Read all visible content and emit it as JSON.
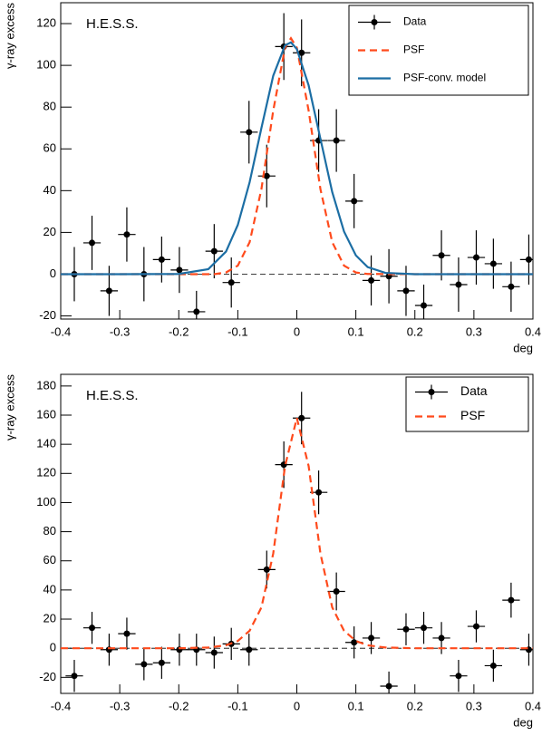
{
  "chart_data": [
    {
      "type": "errorbar",
      "annotation": "H.E.S.S.",
      "y_label": "γ-ray excess",
      "x_label": "deg",
      "xlim": [
        -0.4,
        0.4
      ],
      "xticks": [
        -0.4,
        -0.3,
        -0.2,
        -0.1,
        0,
        0.1,
        0.2,
        0.3,
        0.4
      ],
      "ylim": [
        -21.5,
        130
      ],
      "yticks": [
        -20,
        0,
        20,
        40,
        60,
        80,
        100,
        120
      ],
      "legend": "upper right",
      "zero_line": true,
      "series": [
        {
          "name": "Data",
          "color": "#000000",
          "style": "points",
          "xerr": 0.0148,
          "x": [
            -0.377,
            -0.347,
            -0.318,
            -0.288,
            -0.259,
            -0.229,
            -0.199,
            -0.17,
            -0.14,
            -0.111,
            -0.081,
            -0.051,
            -0.022,
            0.008,
            0.037,
            0.067,
            0.097,
            0.126,
            0.156,
            0.185,
            0.215,
            0.245,
            0.274,
            0.304,
            0.333,
            0.363,
            0.393
          ],
          "values": [
            0,
            15,
            -8,
            19,
            0,
            7,
            2,
            -18,
            11,
            -4,
            68,
            47,
            109,
            106,
            64,
            64,
            35,
            -3,
            -1,
            -8,
            -15,
            9,
            -5,
            8,
            5,
            -6,
            7
          ],
          "errors": [
            13,
            13,
            12,
            13,
            13,
            11,
            11,
            10,
            13,
            12,
            15,
            15,
            16,
            16,
            15,
            15,
            13,
            12,
            13,
            12,
            10,
            12,
            13,
            13,
            12,
            12,
            12
          ]
        },
        {
          "name": "PSF",
          "color": "#ff4a1c",
          "style": "dashed",
          "x": [
            -0.4,
            -0.3,
            -0.2,
            -0.14,
            -0.12,
            -0.1,
            -0.08,
            -0.06,
            -0.04,
            -0.02,
            -0.01,
            0,
            0.02,
            0.04,
            0.06,
            0.08,
            0.1,
            0.12,
            0.2,
            0.3,
            0.4
          ],
          "values": [
            0,
            0,
            0,
            0,
            0.8,
            4.1,
            15.3,
            40.7,
            78.3,
            108.5,
            113,
            108.5,
            78.3,
            40.7,
            15.3,
            4.1,
            0.8,
            0.1,
            0,
            0,
            0
          ]
        },
        {
          "name": "PSF-conv. model",
          "color": "#1c6ea4",
          "style": "solid",
          "x": [
            -0.4,
            -0.3,
            -0.2,
            -0.15,
            -0.12,
            -0.1,
            -0.08,
            -0.06,
            -0.04,
            -0.02,
            -0.01,
            0,
            0.02,
            0.04,
            0.06,
            0.08,
            0.1,
            0.12,
            0.15,
            0.2,
            0.3,
            0.4
          ],
          "values": [
            0,
            0,
            0.1,
            2.4,
            10.8,
            23.6,
            44,
            70,
            95,
            109.6,
            111,
            107.8,
            90.4,
            64.8,
            39.3,
            20.4,
            9,
            3.4,
            0.6,
            0,
            0,
            0
          ]
        }
      ]
    },
    {
      "type": "errorbar",
      "annotation": "H.E.S.S.",
      "y_label": "γ-ray excess",
      "x_label": "deg",
      "xlim": [
        -0.4,
        0.4
      ],
      "xticks": [
        -0.4,
        -0.3,
        -0.2,
        -0.1,
        0,
        0.1,
        0.2,
        0.3,
        0.4
      ],
      "ylim": [
        -31,
        188
      ],
      "yticks": [
        -20,
        0,
        20,
        40,
        60,
        80,
        100,
        120,
        140,
        160,
        180
      ],
      "legend": "upper right",
      "zero_line": true,
      "series": [
        {
          "name": "Data",
          "color": "#000000",
          "style": "points",
          "xerr": 0.0148,
          "x": [
            -0.377,
            -0.347,
            -0.318,
            -0.288,
            -0.259,
            -0.229,
            -0.199,
            -0.17,
            -0.14,
            -0.111,
            -0.081,
            -0.051,
            -0.022,
            0.008,
            0.037,
            0.067,
            0.097,
            0.126,
            0.156,
            0.185,
            0.215,
            0.245,
            0.274,
            0.304,
            0.333,
            0.363,
            0.393
          ],
          "values": [
            -19,
            14,
            -1,
            10,
            -11,
            -10,
            -1,
            -1,
            -3,
            3,
            -1,
            54,
            126,
            158,
            107,
            39,
            4,
            7,
            -26,
            13,
            14,
            7,
            -19,
            15,
            -12,
            33,
            -1
          ],
          "errors": [
            11,
            11,
            11,
            11,
            11,
            11,
            11,
            11,
            11,
            11,
            11,
            13,
            16,
            18,
            15,
            13,
            11,
            11,
            10,
            11,
            11,
            11,
            11,
            11,
            11,
            12,
            11
          ]
        },
        {
          "name": "PSF",
          "color": "#ff4a1c",
          "style": "dashed",
          "x": [
            -0.4,
            -0.3,
            -0.2,
            -0.15,
            -0.12,
            -0.1,
            -0.08,
            -0.06,
            -0.04,
            -0.02,
            0,
            0.02,
            0.04,
            0.06,
            0.08,
            0.1,
            0.12,
            0.15,
            0.2,
            0.3,
            0.4
          ],
          "values": [
            0,
            0,
            0,
            0.5,
            2,
            5,
            12,
            28,
            65,
            125,
            158,
            125,
            65,
            28,
            12,
            5,
            2,
            0.5,
            0,
            0,
            0
          ]
        }
      ]
    }
  ]
}
